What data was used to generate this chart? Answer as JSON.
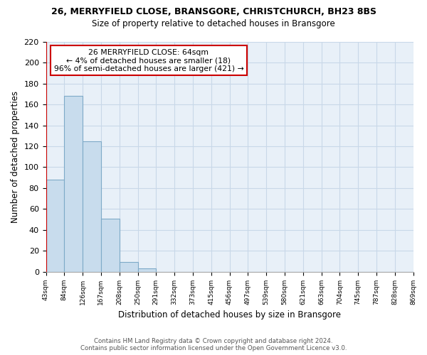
{
  "title": "26, MERRYFIELD CLOSE, BRANSGORE, CHRISTCHURCH, BH23 8BS",
  "subtitle": "Size of property relative to detached houses in Bransgore",
  "xlabel": "Distribution of detached houses by size in Bransgore",
  "ylabel": "Number of detached properties",
  "bar_values": [
    88,
    168,
    125,
    51,
    9,
    3,
    0,
    0,
    0,
    0,
    0,
    0,
    0,
    0,
    0,
    0,
    0,
    0,
    0,
    0
  ],
  "bin_labels": [
    "43sqm",
    "84sqm",
    "126sqm",
    "167sqm",
    "208sqm",
    "250sqm",
    "291sqm",
    "332sqm",
    "373sqm",
    "415sqm",
    "456sqm",
    "497sqm",
    "539sqm",
    "580sqm",
    "621sqm",
    "663sqm",
    "704sqm",
    "745sqm",
    "787sqm",
    "828sqm",
    "869sqm"
  ],
  "bar_fill_color": "#c8dced",
  "bar_edge_color": "#7eaac8",
  "annotation_title": "26 MERRYFIELD CLOSE: 64sqm",
  "annotation_line1": "← 4% of detached houses are smaller (18)",
  "annotation_line2": "96% of semi-detached houses are larger (421) →",
  "annotation_box_facecolor": "#ffffff",
  "annotation_box_edgecolor": "#cc0000",
  "red_line_color": "#cc0000",
  "grid_color": "#c8d8e8",
  "ax_facecolor": "#e8f0f8",
  "ylim": [
    0,
    220
  ],
  "yticks": [
    0,
    20,
    40,
    60,
    80,
    100,
    120,
    140,
    160,
    180,
    200,
    220
  ],
  "footer_line1": "Contains HM Land Registry data © Crown copyright and database right 2024.",
  "footer_line2": "Contains public sector information licensed under the Open Government Licence v3.0."
}
